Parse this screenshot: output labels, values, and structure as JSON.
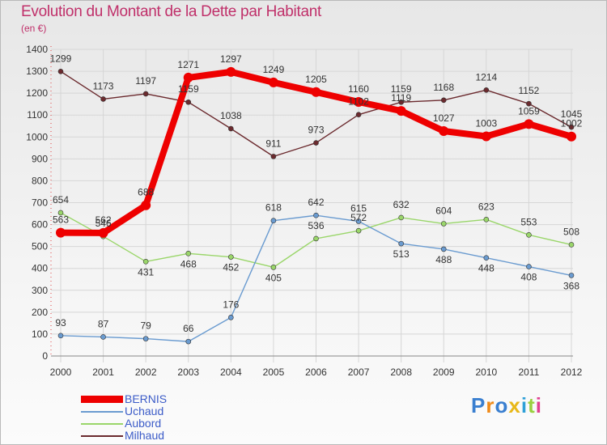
{
  "title": "Evolution du Montant de la Dette par Habitant",
  "subtitle": "(en €)",
  "logo_text": "Proxiti",
  "chart_data": {
    "type": "line",
    "x": [
      "2000",
      "2001",
      "2002",
      "2003",
      "2004",
      "2005",
      "2006",
      "2007",
      "2008",
      "2009",
      "2010",
      "2011",
      "2012"
    ],
    "ylim": [
      0,
      1400
    ],
    "yticks": [
      0,
      100,
      200,
      300,
      400,
      500,
      600,
      700,
      800,
      900,
      1000,
      1100,
      1200,
      1300,
      1400
    ],
    "grid": true,
    "legend_position": "bottom-left",
    "series": [
      {
        "name": "BERNIS",
        "color": "#ee0000",
        "values": [
          563,
          562,
          688,
          1271,
          1297,
          1249,
          1205,
          1160,
          1119,
          1027,
          1003,
          1059,
          1002
        ],
        "labels": [
          "563",
          "562",
          "688",
          "1271",
          "1297",
          "1249",
          "1205",
          "1160",
          "1119",
          "1027",
          "1003",
          "1059",
          "1002"
        ]
      },
      {
        "name": "Uchaud",
        "color": "#6a9bd0",
        "values": [
          93,
          87,
          79,
          66,
          176,
          618,
          642,
          615,
          513,
          488,
          448,
          408,
          368
        ],
        "labels": [
          "93",
          "87",
          "79",
          "66",
          "176",
          "618",
          "642",
          "615",
          "513",
          "488",
          "448",
          "408",
          "368"
        ]
      },
      {
        "name": "Aubord",
        "color": "#9ad66a",
        "values": [
          654,
          546,
          431,
          468,
          452,
          405,
          536,
          572,
          632,
          604,
          623,
          553,
          508
        ],
        "labels": [
          "654",
          "546",
          "431",
          "468",
          "452",
          "405",
          "536",
          "572",
          "632",
          "604",
          "623",
          "553",
          "508"
        ]
      },
      {
        "name": "Milhaud",
        "color": "#6b2a2e",
        "values": [
          1299,
          1173,
          1197,
          1159,
          1038,
          911,
          973,
          1102,
          1159,
          1168,
          1214,
          1152,
          1045
        ],
        "labels": [
          "1299",
          "1173",
          "1197",
          "1159",
          "1038",
          "911",
          "973",
          "1102",
          "1159",
          "1168",
          "1214",
          "1152",
          "1045"
        ]
      }
    ]
  }
}
